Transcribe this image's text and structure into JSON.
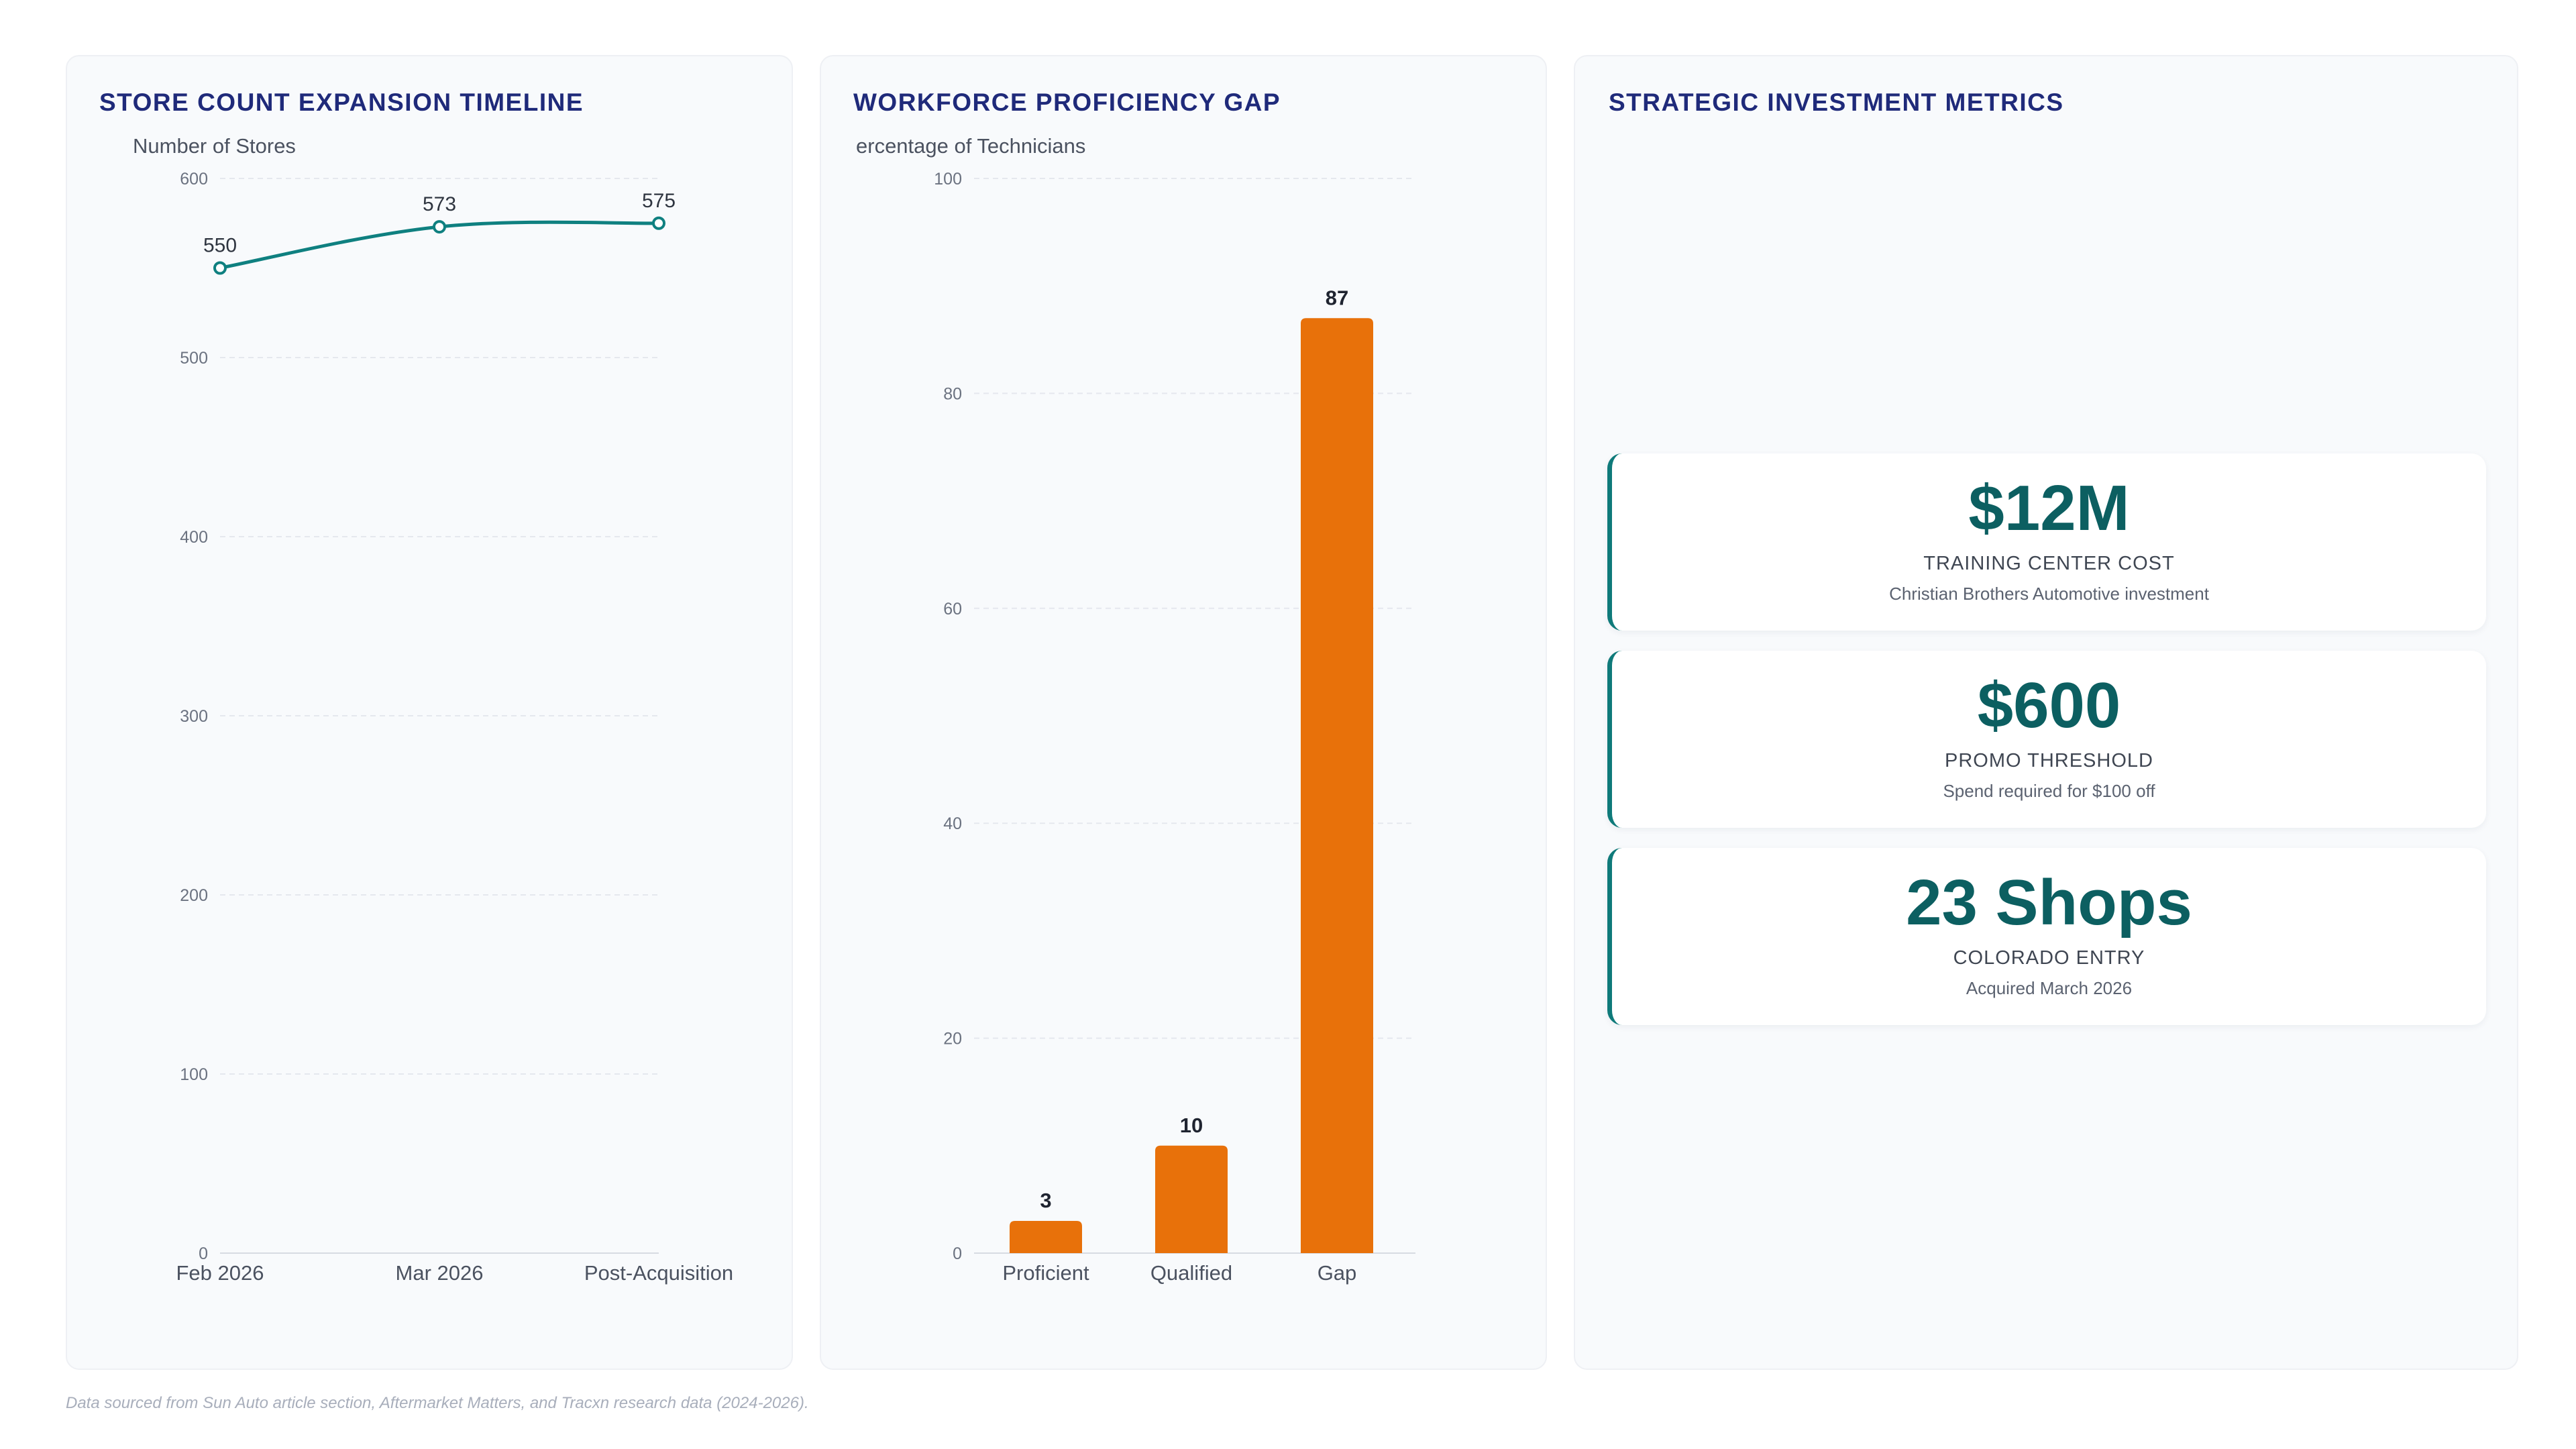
{
  "chart_data": [
    {
      "type": "line",
      "title": "STORE COUNT EXPANSION TIMELINE",
      "ylabel": "Number of Stores",
      "xlabel": "",
      "categories": [
        "Feb 2026",
        "Mar 2026",
        "Post-Acquisition"
      ],
      "values": [
        550,
        573,
        575
      ],
      "ylim": [
        0,
        600
      ],
      "yticks": [
        0,
        100,
        200,
        300,
        400,
        500,
        600
      ],
      "grid": true,
      "color": "#0f8080"
    },
    {
      "type": "bar",
      "title": "WORKFORCE PROFICIENCY GAP",
      "ylabel": "ercentage of Technicians",
      "xlabel": "",
      "categories": [
        "Proficient",
        "Qualified",
        "Gap"
      ],
      "values": [
        3,
        10,
        87
      ],
      "ylim": [
        0,
        100
      ],
      "yticks": [
        0,
        20,
        40,
        60,
        80,
        100
      ],
      "grid": true,
      "color": "#e8710a"
    }
  ],
  "metrics_panel": {
    "title": "STRATEGIC INVESTMENT METRICS",
    "accent_color": "#0f7a7a",
    "cards": [
      {
        "value": "$12M",
        "label": "TRAINING CENTER COST",
        "description": "Christian Brothers Automotive investment"
      },
      {
        "value": "$600",
        "label": "PROMO THRESHOLD",
        "description": "Spend required for $100 off"
      },
      {
        "value": "23 Shops",
        "label": "COLORADO ENTRY",
        "description": "Acquired March 2026"
      }
    ]
  },
  "footer": {
    "source": "Data sourced from Sun Auto article section, Aftermarket Matters, and Tracxn research data (2024-2026)."
  }
}
